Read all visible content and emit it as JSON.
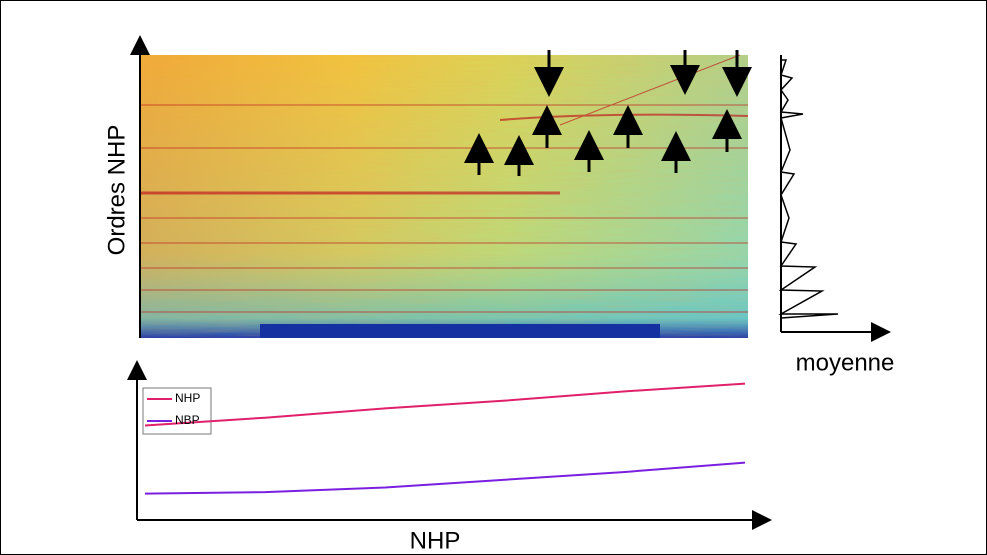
{
  "chart_data": {
    "type": "line",
    "y_label": "Ordres NHP",
    "side_label": "moyenne",
    "x_label": "NHP",
    "x": [
      0,
      2,
      4,
      6,
      8,
      10
    ],
    "xlim": [
      0,
      10
    ],
    "ylim": [
      0,
      100
    ],
    "series": [
      {
        "name": "NHP",
        "color": "#e0206a",
        "values": [
          61,
          66,
          72,
          77,
          83,
          88
        ]
      },
      {
        "name": "NBP",
        "color": "#7a1fe0",
        "values": [
          17,
          18,
          21,
          26,
          31,
          37
        ]
      }
    ]
  }
}
